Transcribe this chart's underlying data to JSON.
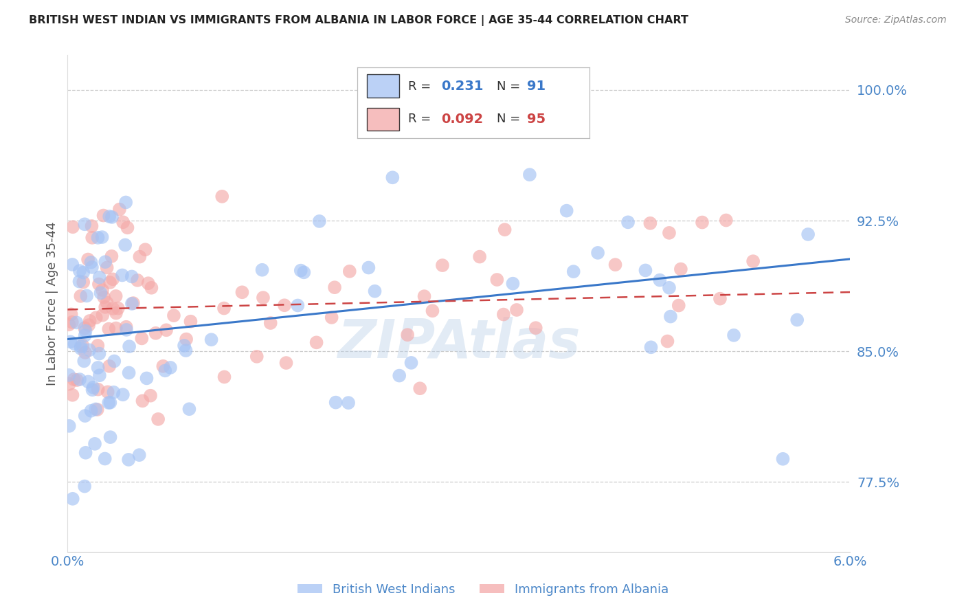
{
  "title": "BRITISH WEST INDIAN VS IMMIGRANTS FROM ALBANIA IN LABOR FORCE | AGE 35-44 CORRELATION CHART",
  "source": "Source: ZipAtlas.com",
  "ylabel": "In Labor Force | Age 35-44",
  "xlim": [
    0.0,
    0.06
  ],
  "ylim": [
    0.735,
    1.02
  ],
  "yticks": [
    0.775,
    0.85,
    0.925,
    1.0
  ],
  "ytick_labels": [
    "77.5%",
    "85.0%",
    "92.5%",
    "100.0%"
  ],
  "xticks": [
    0.0,
    0.01,
    0.02,
    0.03,
    0.04,
    0.05,
    0.06
  ],
  "xtick_labels": [
    "0.0%",
    "",
    "",
    "",
    "",
    "",
    "6.0%"
  ],
  "blue_R": 0.231,
  "blue_N": 91,
  "pink_R": 0.092,
  "pink_N": 95,
  "blue_color": "#a4c2f4",
  "pink_color": "#f4a9a8",
  "blue_line_color": "#3a78c9",
  "pink_line_color": "#cc4444",
  "axis_color": "#4a86c8",
  "grid_color": "#cccccc",
  "background_color": "#ffffff",
  "watermark": "ZIPAtlas",
  "legend_label_blue": "British West Indians",
  "legend_label_pink": "Immigrants from Albania",
  "blue_line_x0": 0.0,
  "blue_line_y0": 0.857,
  "blue_line_x1": 0.06,
  "blue_line_y1": 0.903,
  "pink_line_x0": 0.0,
  "pink_line_y0": 0.874,
  "pink_line_x1": 0.06,
  "pink_line_y1": 0.884
}
